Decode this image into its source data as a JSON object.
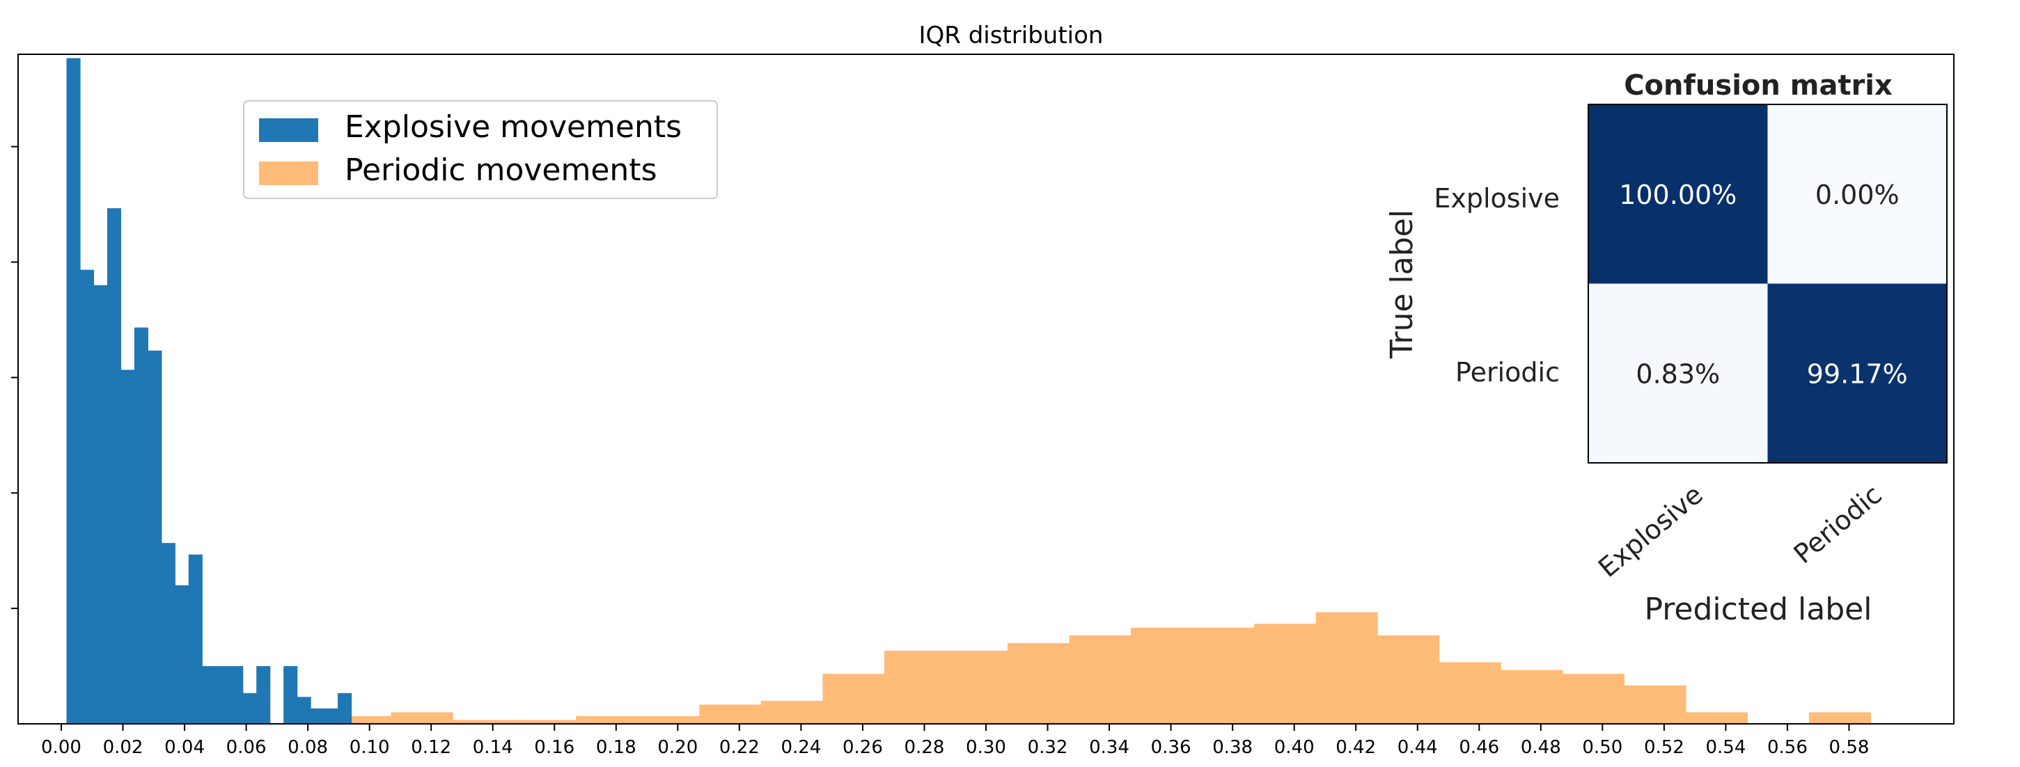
{
  "chart_data": [
    {
      "type": "histogram",
      "title": "IQR distribution",
      "xlim": [
        -0.014,
        0.614
      ],
      "ylim": [
        0,
        87
      ],
      "xticks": [
        "0.00",
        "0.02",
        "0.04",
        "0.06",
        "0.08",
        "0.10",
        "0.12",
        "0.14",
        "0.16",
        "0.18",
        "0.20",
        "0.22",
        "0.24",
        "0.26",
        "0.28",
        "0.30",
        "0.32",
        "0.34",
        "0.36",
        "0.38",
        "0.40",
        "0.42",
        "0.44",
        "0.46",
        "0.48",
        "0.50",
        "0.52",
        "0.54",
        "0.56",
        "0.58"
      ],
      "yticks_unlabeled": [
        15,
        30,
        45,
        60,
        75
      ],
      "legend": {
        "location": "upper-left",
        "entries": [
          "Explosive movements",
          "Periodic movements"
        ]
      },
      "colors": {
        "explosive": "#1f77b4",
        "periodic": "#ffbb78"
      },
      "series": [
        {
          "name": "Periodic movements",
          "bin_edges": [
            0.087,
            0.107,
            0.127,
            0.147,
            0.167,
            0.187,
            0.207,
            0.227,
            0.247,
            0.267,
            0.287,
            0.307,
            0.327,
            0.347,
            0.367,
            0.387,
            0.407,
            0.427,
            0.447,
            0.467,
            0.487,
            0.507,
            0.527,
            0.547,
            0.567,
            0.587
          ],
          "counts": [
            1,
            1.5,
            0.5,
            0.5,
            1,
            1,
            2.5,
            3,
            6.5,
            9.5,
            9.5,
            10.5,
            11.5,
            12.5,
            12.5,
            13,
            14.5,
            11.5,
            8,
            7,
            6.5,
            5,
            1.5,
            0,
            1.5
          ]
        },
        {
          "name": "Explosive movements",
          "bin_edges": [
            0.0017,
            0.0061,
            0.0105,
            0.0149,
            0.0193,
            0.0237,
            0.0281,
            0.0325,
            0.0369,
            0.0413,
            0.0457,
            0.0501,
            0.0545,
            0.0589,
            0.0633,
            0.0677,
            0.0721,
            0.0765,
            0.0809,
            0.0853,
            0.0897,
            0.0941,
            0.0985,
            0.1029,
            0.1073,
            0.1117,
            0.1161
          ],
          "counts": [
            86.5,
            59,
            57,
            67,
            46,
            51.5,
            48.5,
            23.5,
            18,
            22,
            7.5,
            7.5,
            7.5,
            4,
            7.5,
            0,
            7.5,
            3.5,
            2,
            2,
            4,
            0,
            0,
            0,
            0,
            0
          ]
        }
      ]
    },
    {
      "type": "heatmap",
      "title": "Confusion matrix",
      "xlabel": "Predicted label",
      "ylabel": "True label",
      "row_labels": [
        "Explosive",
        "Periodic"
      ],
      "col_labels": [
        "Explosive",
        "Periodic"
      ],
      "values": [
        [
          100.0,
          0.0
        ],
        [
          0.83,
          99.17
        ]
      ],
      "cell_text": [
        [
          "100.00%",
          "0.00%"
        ],
        [
          "0.83%",
          "99.17%"
        ]
      ],
      "colormap": {
        "low": "#f7fbff",
        "high": "#08306b"
      }
    }
  ]
}
